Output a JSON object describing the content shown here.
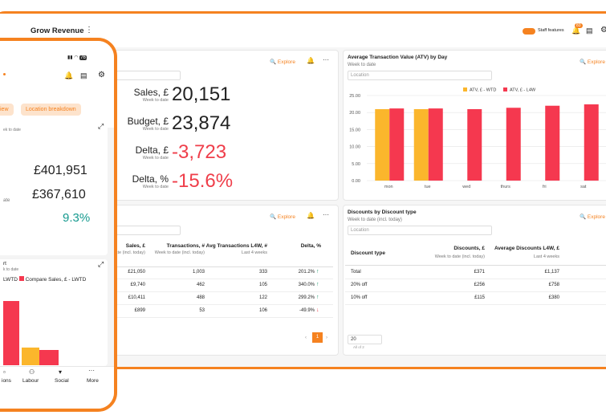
{
  "header": {
    "title": "Grow Revenue",
    "toggle": "Staff features",
    "badge": "83"
  },
  "kpi_card": {
    "explore": "Explore",
    "items": [
      {
        "label": "Sales, £",
        "sub": "Week to date",
        "value": "20,151"
      },
      {
        "label": "Budget, £",
        "sub": "Week to date",
        "value": "23,874"
      },
      {
        "label": "Delta, £",
        "sub": "Week to date",
        "value": "-3,723"
      },
      {
        "label": "Delta, %",
        "sub": "Week to date",
        "value": "-15.6%"
      }
    ]
  },
  "atv_chart": {
    "type": "bar",
    "title": "Average Transaction Value (ATV) by Day",
    "subtitle": "Week to date",
    "filter": "Location",
    "explore": "Explore",
    "categories": [
      "mon",
      "tue",
      "wed",
      "thurs",
      "fri",
      "sat"
    ],
    "series": [
      {
        "name": "ATV, £ - WTD",
        "color": "#fbb62c",
        "values": [
          21,
          21,
          null,
          null,
          null,
          null
        ]
      },
      {
        "name": "ATV, £ - L4W",
        "color": "#f5384f",
        "values": [
          21.2,
          21.2,
          21,
          21.4,
          22,
          22.4
        ]
      }
    ],
    "ylim": [
      0,
      25
    ],
    "yticks": [
      {
        "value": 0,
        "label": "0.00"
      },
      {
        "value": 5,
        "label": "5.00"
      },
      {
        "value": 10,
        "label": "10.00"
      },
      {
        "value": 15,
        "label": "15.00"
      },
      {
        "value": 20,
        "label": "20.00"
      },
      {
        "value": 25,
        "label": "25.00"
      }
    ],
    "grid": true
  },
  "sales_table": {
    "explore": "Explore",
    "headers": [
      {
        "title": "Sales, £",
        "sub": "to date (incl. today)"
      },
      {
        "title": "Transactions, #",
        "sub": "Week to date (incl. today)"
      },
      {
        "title": "Avg Transactions L4W, #",
        "sub": "Last 4 weeks"
      },
      {
        "title": "Delta, %",
        "sub": ""
      }
    ],
    "rows": [
      [
        "£21,050",
        "1,003",
        "333",
        "201.2%"
      ],
      [
        "£9,740",
        "462",
        "105",
        "340.0%"
      ],
      [
        "£10,411",
        "488",
        "122",
        "299.2%"
      ],
      [
        "£899",
        "53",
        "106",
        "-49.9%"
      ]
    ],
    "page": "1"
  },
  "discount_table": {
    "title": "Discounts by Discount type",
    "subtitle": "Week to date (incl. today)",
    "filter": "Location",
    "explore": "Explore",
    "headers": [
      {
        "title": "Discount type",
        "sub": ""
      },
      {
        "title": "Discounts, £",
        "sub": "Week to date (incl. today)"
      },
      {
        "title": "Average Discounts L4W, £",
        "sub": "Last 4 weeks"
      }
    ],
    "rows": [
      [
        "Total",
        "£371",
        "£1,137"
      ],
      [
        "20% off",
        "£256",
        "£758"
      ],
      [
        "10% off",
        "£115",
        "£380"
      ]
    ],
    "page_size": "20",
    "count": "All of 2"
  },
  "phone": {
    "battery": "76",
    "tabs": [
      "iew",
      "Location breakdown"
    ],
    "card_sub": "ek to date",
    "values": [
      "£401,951",
      "£367,610",
      "9.3%"
    ],
    "row_label": "ate",
    "chart_title": "rt",
    "chart_sub": "k to date",
    "legend": [
      "LWTD",
      "Compare Sales, £ - LWTD"
    ],
    "nav": [
      "ions",
      "Labour",
      "Social",
      "More"
    ]
  }
}
